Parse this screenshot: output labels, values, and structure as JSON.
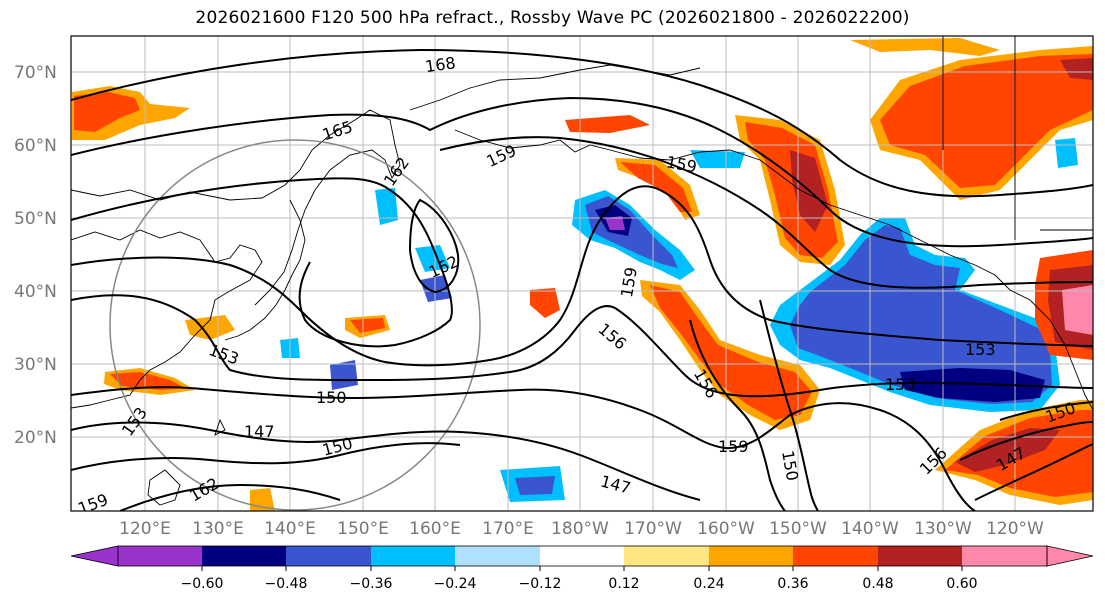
{
  "title": "2026021600 F120 500 hPa refract., Rossby Wave PC (2026021800 - 2026022200)",
  "map": {
    "lat_labels": [
      "70°N",
      "60°N",
      "50°N",
      "40°N",
      "30°N",
      "20°N"
    ],
    "lon_labels": [
      "120°E",
      "130°E",
      "140°E",
      "150°E",
      "160°E",
      "170°E",
      "180°W",
      "170°W",
      "160°W",
      "150°W",
      "140°W",
      "130°W",
      "120°W"
    ],
    "contour_labels": [
      "168",
      "165",
      "162",
      "162",
      "159",
      "159",
      "159",
      "159",
      "156",
      "156",
      "156",
      "153",
      "153",
      "153",
      "153",
      "150",
      "150",
      "150",
      "150",
      "147",
      "147",
      "147",
      "162",
      "159"
    ]
  },
  "colorbar": {
    "tick_labels": [
      "−0.60",
      "−0.48",
      "−0.36",
      "−0.24",
      "−0.12",
      "0.12",
      "0.24",
      "0.36",
      "0.48",
      "0.60"
    ],
    "colors": [
      "#9933cc",
      "#000080",
      "#3a55d0",
      "#00bfff",
      "#b0e0ff",
      "#ffffff",
      "#ffe680",
      "#ffa500",
      "#ff4500",
      "#b22222",
      "#ff88aa"
    ]
  }
}
